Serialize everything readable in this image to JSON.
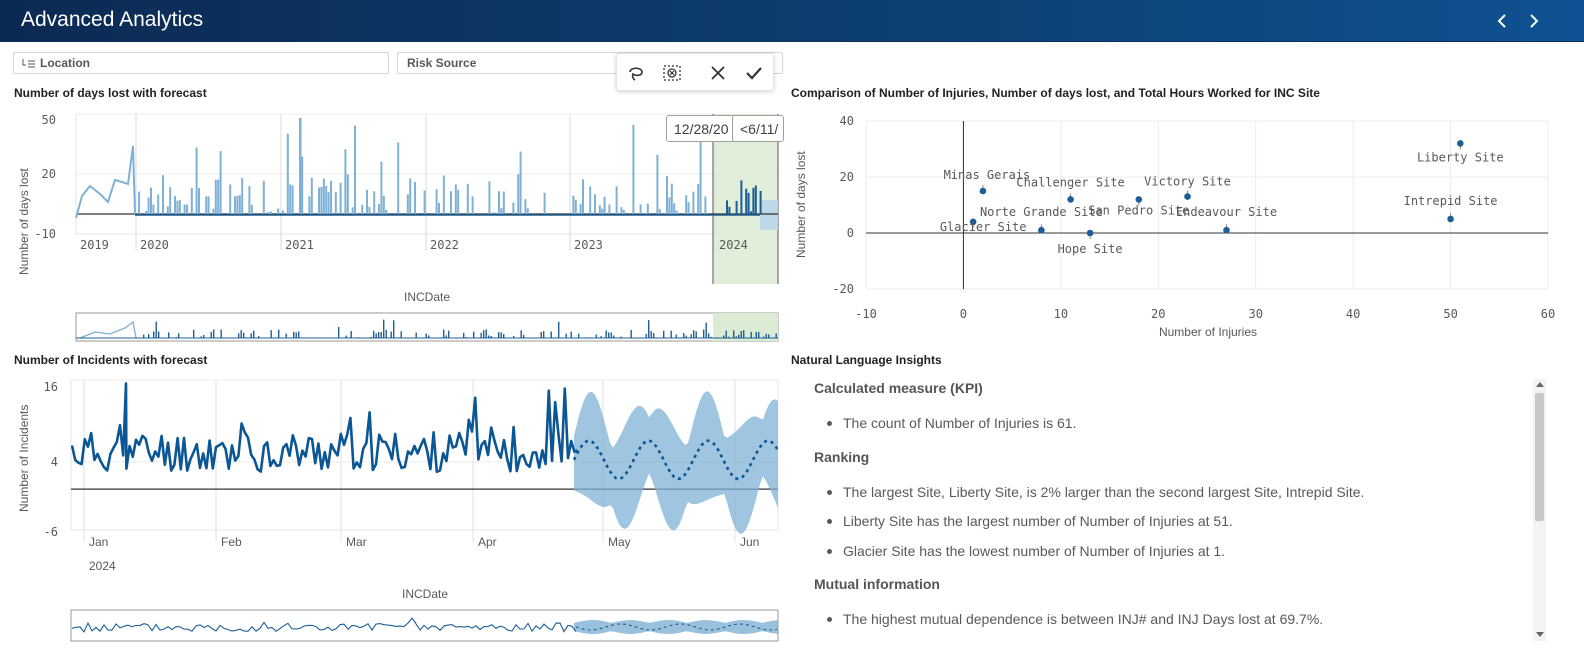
{
  "app": {
    "title": "Advanced Analytics",
    "accent": "#0b3a6e"
  },
  "filters": {
    "location": "Location",
    "risk_source": "Risk Source"
  },
  "toolbar": {
    "icons": [
      "lasso-icon",
      "clear-selection-icon",
      "cancel-icon",
      "confirm-icon"
    ]
  },
  "days_lost_chart": {
    "title": "Number of days lost with forecast",
    "ylabel": "Number of days lost",
    "xlabel": "INCDate",
    "y_ticks": [
      "50",
      "20",
      "-10"
    ],
    "x_ticks": [
      "2019",
      "2020",
      "2021",
      "2022",
      "2023",
      "2024"
    ],
    "range_start_label": "12/28/20",
    "range_end_label": "<6/11/"
  },
  "scatter_chart": {
    "title": "Comparison of Number of Injuries, Number of days lost, and Total Hours Worked for INC Site",
    "xlabel": "Number of Injuries",
    "ylabel": "Number of days lost",
    "x_ticks": [
      "-10",
      "0",
      "10",
      "20",
      "30",
      "40",
      "50",
      "60"
    ],
    "y_ticks": [
      "40",
      "20",
      "0",
      "-20"
    ]
  },
  "incidents_chart": {
    "title": "Number of Incidents with forecast",
    "ylabel": "Number of Incidents",
    "xlabel": "INCDate",
    "y_ticks": [
      "16",
      "4",
      "-6"
    ],
    "x_ticks": [
      "Jan",
      "Feb",
      "Mar",
      "Apr",
      "May",
      "Jun"
    ],
    "year_label": "2024"
  },
  "insights": {
    "title": "Natural Language Insights",
    "sections": [
      {
        "heading": "Calculated measure (KPI)",
        "items": [
          "The count of Number of Injuries is 61."
        ]
      },
      {
        "heading": "Ranking",
        "items": [
          "The largest Site, Liberty Site, is 2% larger than the second largest Site, Intrepid Site.",
          "Liberty Site has the largest number of Number of Injuries at 51.",
          "Glacier Site has the lowest number of Number of Injuries at 1."
        ]
      },
      {
        "heading": "Mutual information",
        "items": [
          "The highest mutual dependence is between INJ# and INJ Days lost at 69.7%."
        ]
      }
    ]
  },
  "chart_data": [
    {
      "type": "scatter",
      "title": "Comparison of Number of Injuries, Number of days lost, and Total Hours Worked for INC Site",
      "xlabel": "Number of Injuries",
      "ylabel": "Number of days lost",
      "xlim": [
        -10,
        60
      ],
      "ylim": [
        -20,
        40
      ],
      "grid": true,
      "points": [
        {
          "label": "Glacier Site",
          "x": 1,
          "y": 4
        },
        {
          "label": "Minas Gerais",
          "x": 2,
          "y": 15
        },
        {
          "label": "Norte Grande Site",
          "x": 8,
          "y": 1
        },
        {
          "label": "Challenger Site",
          "x": 11,
          "y": 12
        },
        {
          "label": "Hope Site",
          "x": 13,
          "y": 0
        },
        {
          "label": "San Pedro Site",
          "x": 18,
          "y": 12
        },
        {
          "label": "Victory Site",
          "x": 23,
          "y": 13
        },
        {
          "label": "Endeavour Site",
          "x": 27,
          "y": 1
        },
        {
          "label": "Intrepid Site",
          "x": 50,
          "y": 5
        },
        {
          "label": "Liberty Site",
          "x": 51,
          "y": 32
        }
      ]
    },
    {
      "type": "bar",
      "title": "Number of days lost with forecast",
      "xlabel": "INCDate",
      "ylabel": "Number of days lost",
      "ylim": [
        -10,
        50
      ],
      "x_ticks": [
        "2019",
        "2020",
        "2021",
        "2022",
        "2023",
        "2024"
      ],
      "note": "daily bars; forecast region shaded after 2024"
    },
    {
      "type": "line",
      "title": "Number of Incidents with forecast",
      "xlabel": "INCDate",
      "ylabel": "Number of Incidents",
      "ylim": [
        -6,
        16
      ],
      "x_ticks": [
        "Jan",
        "Feb",
        "Mar",
        "Apr",
        "May",
        "Jun"
      ],
      "note": "solid historical series to late April, dotted forecast with confidence band afterwards"
    }
  ]
}
